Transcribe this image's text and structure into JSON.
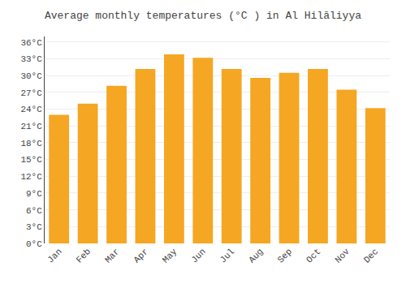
{
  "chart_data": {
    "type": "bar",
    "title": "Average monthly temperatures (°C ) in Al Hilāliyya",
    "categories": [
      "Jan",
      "Feb",
      "Mar",
      "Apr",
      "May",
      "Jun",
      "Jul",
      "Aug",
      "Sep",
      "Oct",
      "Nov",
      "Dec"
    ],
    "values": [
      23.0,
      25.0,
      28.2,
      31.2,
      33.8,
      33.2,
      31.2,
      29.6,
      30.5,
      31.2,
      27.5,
      24.2
    ],
    "color": "#F5A623",
    "ylim": [
      0,
      37
    ],
    "yticks": [
      {
        "value": 0,
        "label": "0°C"
      },
      {
        "value": 3,
        "label": "3°C"
      },
      {
        "value": 6,
        "label": "6°C"
      },
      {
        "value": 9,
        "label": "9°C"
      },
      {
        "value": 12,
        "label": "12°C"
      },
      {
        "value": 15,
        "label": "15°C"
      },
      {
        "value": 18,
        "label": "18°C"
      },
      {
        "value": 21,
        "label": "21°C"
      },
      {
        "value": 24,
        "label": "24°C"
      },
      {
        "value": 27,
        "label": "27°C"
      },
      {
        "value": 30,
        "label": "30°C"
      },
      {
        "value": 33,
        "label": "33°C"
      },
      {
        "value": 36,
        "label": "36°C"
      }
    ],
    "grid": true
  }
}
